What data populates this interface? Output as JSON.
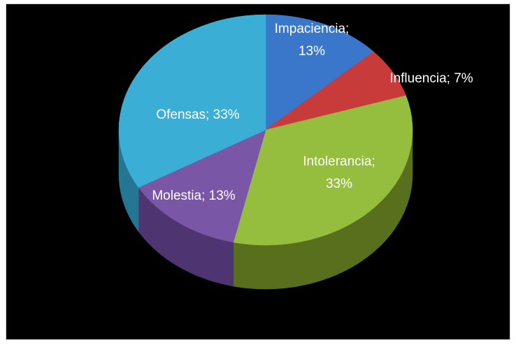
{
  "chart_data": {
    "type": "pie",
    "style": "3d",
    "categories": [
      "Impaciencia",
      "Influencia",
      "Intolerancia",
      "Molestia",
      "Ofensas"
    ],
    "values": [
      13,
      7,
      33,
      13,
      33
    ],
    "units": "%",
    "labels": [
      {
        "category": "Impaciencia",
        "lines": [
          "Impaciencia;",
          "13%"
        ],
        "color": "#ffffff"
      },
      {
        "category": "Influencia",
        "lines": [
          "Influencia; 7%"
        ],
        "color": "#ffffff"
      },
      {
        "category": "Intolerancia",
        "lines": [
          "Intolerancia;",
          "33%"
        ],
        "color": "#ffffff"
      },
      {
        "category": "Molestia",
        "lines": [
          "Molestia; 13%"
        ],
        "color": "#ffffff"
      },
      {
        "category": "Ofensas",
        "lines": [
          "Ofensas; 33%"
        ],
        "color": "#ffffff"
      }
    ],
    "colors": [
      "#3a77cb",
      "#c83b3b",
      "#95bd3e",
      "#7a56a6",
      "#3aaed4"
    ],
    "side_colors": [
      "#1f4a86",
      "#7d2323",
      "#586f1e",
      "#4e3470",
      "#237694"
    ],
    "background": "#000000",
    "legend": "none"
  }
}
